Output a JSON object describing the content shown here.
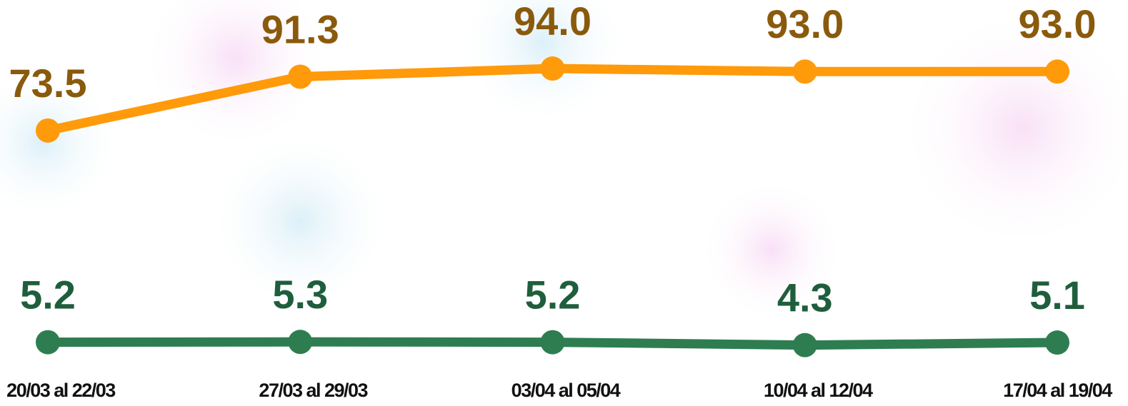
{
  "chart_data": {
    "type": "line",
    "categories": [
      "20/03 al 22/03",
      "27/03 al 29/03",
      "03/04 al 05/04",
      "10/04 al 12/04",
      "17/04 al 19/04"
    ],
    "series": [
      {
        "name": null,
        "color": "#ff9a0a",
        "values": [
          73.5,
          91.3,
          94.0,
          93.0,
          93.0
        ],
        "value_labels": [
          "73.5",
          "91.3",
          "94.0",
          "93.0",
          "93.0"
        ]
      },
      {
        "name": null,
        "color": "#2e7d50",
        "axis": "y2",
        "values": [
          5.2,
          5.3,
          5.2,
          4.3,
          5.1
        ],
        "value_labels": [
          "5.2",
          "5.3",
          "5.2",
          "4.3",
          "5.1"
        ]
      }
    ],
    "ylim": [
      50,
      100
    ],
    "y2lim": [
      0,
      10
    ],
    "grid": false
  }
}
